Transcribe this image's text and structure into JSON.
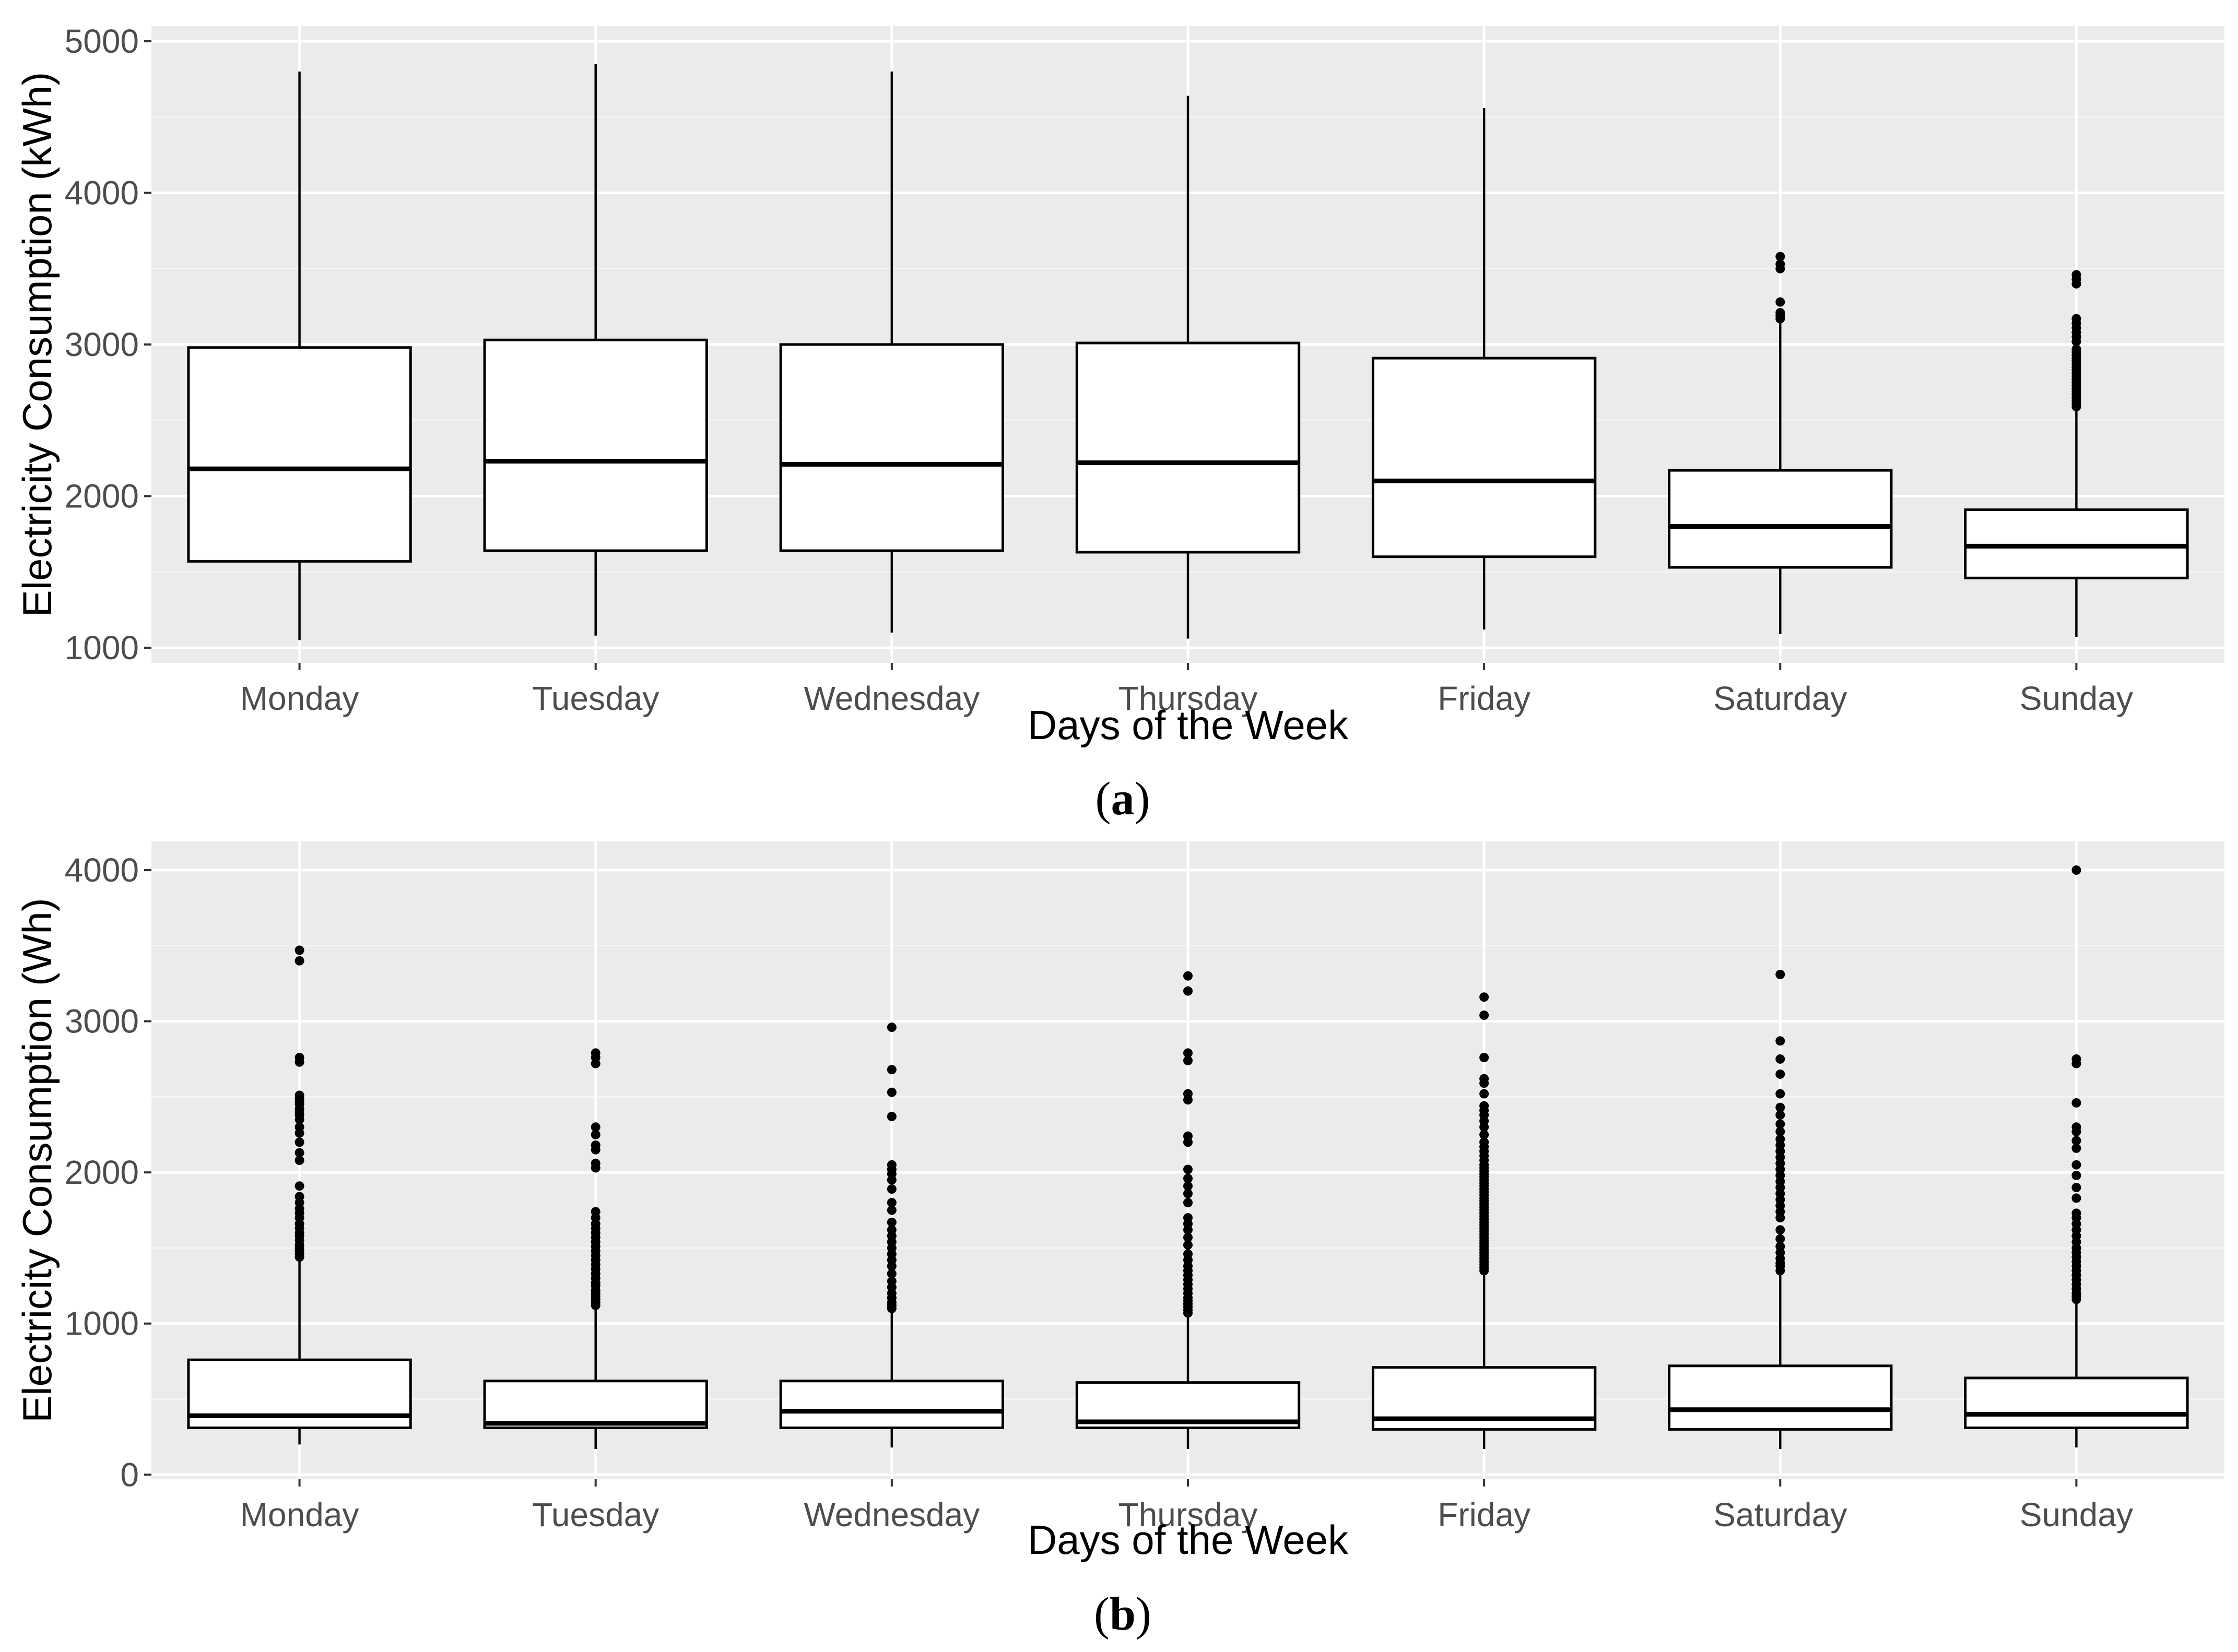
{
  "chart_data": [
    {
      "type": "box",
      "panel_label": "a",
      "xlabel": "Days of the Week",
      "ylabel": "Electricity Consumption (kWh)",
      "ylim": [
        900,
        5100
      ],
      "yticks": [
        1000,
        2000,
        3000,
        4000,
        5000
      ],
      "categories": [
        "Monday",
        "Tuesday",
        "Wednesday",
        "Thursday",
        "Friday",
        "Saturday",
        "Sunday"
      ],
      "boxes": [
        {
          "name": "Monday",
          "whisker_low": 1050,
          "q1": 1570,
          "median": 2180,
          "q3": 2980,
          "whisker_high": 4800,
          "outliers": []
        },
        {
          "name": "Tuesday",
          "whisker_low": 1080,
          "q1": 1640,
          "median": 2230,
          "q3": 3030,
          "whisker_high": 4850,
          "outliers": []
        },
        {
          "name": "Wednesday",
          "whisker_low": 1100,
          "q1": 1640,
          "median": 2210,
          "q3": 3000,
          "whisker_high": 4800,
          "outliers": []
        },
        {
          "name": "Thursday",
          "whisker_low": 1060,
          "q1": 1630,
          "median": 2220,
          "q3": 3010,
          "whisker_high": 4640,
          "outliers": []
        },
        {
          "name": "Friday",
          "whisker_low": 1120,
          "q1": 1600,
          "median": 2100,
          "q3": 2910,
          "whisker_high": 4560,
          "outliers": []
        },
        {
          "name": "Saturday",
          "whisker_low": 1090,
          "q1": 1530,
          "median": 1800,
          "q3": 2170,
          "whisker_high": 3150,
          "outliers": [
            3170,
            3190,
            3210,
            3280,
            3500,
            3530,
            3580
          ]
        },
        {
          "name": "Sunday",
          "whisker_low": 1070,
          "q1": 1460,
          "median": 1670,
          "q3": 1910,
          "whisker_high": 2560,
          "outliers": [
            2590,
            2610,
            2630,
            2650,
            2670,
            2690,
            2710,
            2730,
            2750,
            2770,
            2790,
            2810,
            2830,
            2850,
            2870,
            2890,
            2910,
            2930,
            2950,
            2970,
            3020,
            3050,
            3080,
            3110,
            3140,
            3170,
            3400,
            3430,
            3460
          ]
        }
      ]
    },
    {
      "type": "box",
      "panel_label": "b",
      "xlabel": "Days of the Week",
      "ylabel": "Electricity Consumption (Wh)",
      "ylim": [
        -30,
        4190
      ],
      "yticks": [
        0,
        1000,
        2000,
        3000,
        4000
      ],
      "categories": [
        "Monday",
        "Tuesday",
        "Wednesday",
        "Thursday",
        "Friday",
        "Saturday",
        "Sunday"
      ],
      "boxes": [
        {
          "name": "Monday",
          "whisker_low": 200,
          "q1": 310,
          "median": 390,
          "q3": 760,
          "whisker_high": 1420,
          "outliers": [
            1440,
            1460,
            1480,
            1500,
            1520,
            1550,
            1580,
            1600,
            1630,
            1660,
            1700,
            1730,
            1760,
            1800,
            1840,
            1910,
            2080,
            2130,
            2200,
            2260,
            2300,
            2350,
            2380,
            2400,
            2420,
            2450,
            2470,
            2490,
            2510,
            2730,
            2760,
            3400,
            3470
          ]
        },
        {
          "name": "Tuesday",
          "whisker_low": 170,
          "q1": 310,
          "median": 340,
          "q3": 620,
          "whisker_high": 1100,
          "outliers": [
            1120,
            1140,
            1160,
            1180,
            1200,
            1220,
            1250,
            1270,
            1300,
            1330,
            1360,
            1390,
            1420,
            1450,
            1480,
            1510,
            1540,
            1570,
            1600,
            1630,
            1660,
            1700,
            1740,
            2030,
            2060,
            2150,
            2180,
            2250,
            2300,
            2720,
            2760,
            2790
          ]
        },
        {
          "name": "Wednesday",
          "whisker_low": 180,
          "q1": 310,
          "median": 420,
          "q3": 620,
          "whisker_high": 1080,
          "outliers": [
            1100,
            1120,
            1140,
            1170,
            1200,
            1240,
            1280,
            1330,
            1380,
            1420,
            1460,
            1500,
            1540,
            1580,
            1620,
            1670,
            1750,
            1800,
            1890,
            1950,
            1990,
            2020,
            2050,
            2370,
            2530,
            2680,
            2960
          ]
        },
        {
          "name": "Thursday",
          "whisker_low": 170,
          "q1": 310,
          "median": 350,
          "q3": 610,
          "whisker_high": 1050,
          "outliers": [
            1070,
            1090,
            1110,
            1130,
            1150,
            1170,
            1200,
            1230,
            1260,
            1290,
            1320,
            1350,
            1380,
            1420,
            1460,
            1520,
            1570,
            1620,
            1660,
            1700,
            1800,
            1860,
            1910,
            1960,
            2020,
            2200,
            2240,
            2480,
            2520,
            2740,
            2790,
            3200,
            3300
          ]
        },
        {
          "name": "Friday",
          "whisker_low": 170,
          "q1": 300,
          "median": 370,
          "q3": 710,
          "whisker_high": 1330,
          "outliers": [
            1350,
            1370,
            1390,
            1410,
            1430,
            1450,
            1470,
            1490,
            1510,
            1530,
            1550,
            1570,
            1590,
            1610,
            1630,
            1650,
            1670,
            1690,
            1710,
            1730,
            1750,
            1770,
            1790,
            1810,
            1830,
            1850,
            1870,
            1890,
            1910,
            1930,
            1950,
            1970,
            1990,
            2010,
            2030,
            2050,
            2080,
            2110,
            2140,
            2170,
            2200,
            2250,
            2300,
            2340,
            2380,
            2410,
            2440,
            2520,
            2590,
            2620,
            2760,
            3040,
            3160
          ]
        },
        {
          "name": "Saturday",
          "whisker_low": 170,
          "q1": 300,
          "median": 430,
          "q3": 720,
          "whisker_high": 1330,
          "outliers": [
            1350,
            1380,
            1400,
            1430,
            1470,
            1510,
            1560,
            1620,
            1700,
            1740,
            1780,
            1820,
            1860,
            1900,
            1940,
            1980,
            2020,
            2060,
            2100,
            2140,
            2180,
            2220,
            2270,
            2320,
            2380,
            2430,
            2520,
            2650,
            2750,
            2870,
            3310
          ]
        },
        {
          "name": "Sunday",
          "whisker_low": 180,
          "q1": 310,
          "median": 400,
          "q3": 640,
          "whisker_high": 1140,
          "outliers": [
            1160,
            1180,
            1200,
            1230,
            1260,
            1290,
            1320,
            1350,
            1380,
            1410,
            1440,
            1470,
            1500,
            1540,
            1580,
            1620,
            1660,
            1700,
            1730,
            1830,
            1900,
            1980,
            2050,
            2160,
            2210,
            2270,
            2300,
            2460,
            2720,
            2750,
            4000
          ]
        }
      ]
    }
  ]
}
